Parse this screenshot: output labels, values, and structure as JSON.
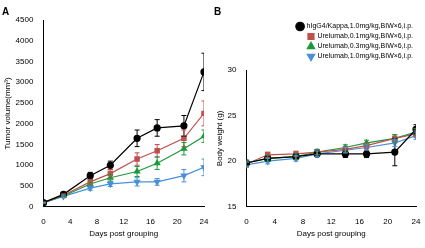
{
  "chart_data": [
    {
      "type": "line",
      "title": "A",
      "x_label": "Days post grouping",
      "y_label": "Tumor volume(mm³)",
      "x": [
        0,
        3,
        7,
        10,
        14,
        17,
        21,
        24
      ],
      "xlim": [
        0,
        24
      ],
      "xticks": [
        0,
        4,
        8,
        12,
        16,
        20,
        24
      ],
      "ylim": [
        0,
        4500
      ],
      "yticks": [
        0,
        500,
        1000,
        1500,
        2000,
        2500,
        3000,
        3500,
        4000,
        4500
      ],
      "grid": false,
      "series": [
        {
          "color": "#000000",
          "marker": "circle",
          "values": [
            100,
            300,
            750,
            1000,
            1650,
            1900,
            1950,
            3250
          ],
          "errors": [
            10,
            30,
            80,
            100,
            200,
            200,
            250,
            450
          ]
        },
        {
          "color": "#c0504d",
          "marker": "square",
          "values": [
            100,
            280,
            600,
            800,
            1150,
            1350,
            1650,
            2250
          ],
          "errors": [
            10,
            30,
            60,
            100,
            150,
            150,
            200,
            300
          ]
        },
        {
          "color": "#1a9a3a",
          "marker": "triangle",
          "values": [
            100,
            260,
            550,
            700,
            850,
            1050,
            1400,
            1700
          ],
          "errors": [
            10,
            30,
            50,
            80,
            120,
            150,
            150,
            150
          ]
        },
        {
          "color": "#4a90d9",
          "marker": "triangle-down",
          "values": [
            100,
            250,
            450,
            550,
            600,
            600,
            750,
            950
          ],
          "errors": [
            10,
            30,
            50,
            60,
            100,
            80,
            150,
            200
          ]
        }
      ]
    },
    {
      "type": "line",
      "title": "B",
      "x_label": "Days post grouping",
      "y_label": "Body weight (g)",
      "x": [
        0,
        3,
        7,
        10,
        14,
        17,
        21,
        24
      ],
      "xlim": [
        0,
        24
      ],
      "xticks": [
        0,
        4,
        8,
        12,
        16,
        20,
        24
      ],
      "ylim": [
        15,
        30
      ],
      "yticks": [
        15,
        20,
        25,
        30
      ],
      "grid": false,
      "legend": "top",
      "series": [
        {
          "name": "hIgG4/Kappa,1.0mg/kg,BIW×6,i.p.",
          "color": "#000000",
          "marker": "circle",
          "values": [
            19.8,
            20.3,
            20.5,
            20.8,
            20.8,
            20.8,
            21.0,
            23.5
          ],
          "errors": [
            0.3,
            0.3,
            0.3,
            0.3,
            0.4,
            0.4,
            1.5,
            0.5
          ]
        },
        {
          "name": "Urelumab,0.1mg/kg,BIW×6,i.p.",
          "color": "#c0504d",
          "marker": "square",
          "values": [
            19.7,
            20.7,
            20.8,
            21.0,
            21.3,
            21.7,
            22.5,
            23.0
          ],
          "errors": [
            0.3,
            0.3,
            0.3,
            0.3,
            0.3,
            0.3,
            0.4,
            0.4
          ]
        },
        {
          "name": "Urelumab,0.3mg/kg,BIW×6,i.p.",
          "color": "#1a9a3a",
          "marker": "triangle",
          "values": [
            19.8,
            20.3,
            20.5,
            21.0,
            21.5,
            22.0,
            22.5,
            23.2
          ],
          "errors": [
            0.3,
            0.3,
            0.3,
            0.3,
            0.3,
            0.3,
            0.4,
            0.4
          ]
        },
        {
          "name": "Urelumab,1.0mg/kg,BIW×6,i.p.",
          "color": "#4a90d9",
          "marker": "triangle-down",
          "values": [
            19.6,
            20.0,
            20.3,
            20.8,
            21.2,
            21.5,
            22.0,
            22.8
          ],
          "errors": [
            0.3,
            0.3,
            0.3,
            0.3,
            0.3,
            0.3,
            0.4,
            0.4
          ]
        }
      ]
    }
  ]
}
